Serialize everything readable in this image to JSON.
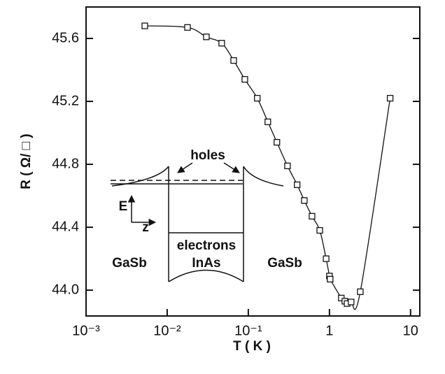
{
  "chart_data": {
    "type": "scatter",
    "xlabel": "T ( K )",
    "ylabel": "R ( Ω/ □ )",
    "x": [
      0.0053,
      0.0178,
      0.0304,
      0.047,
      0.066,
      0.0906,
      0.129,
      0.174,
      0.225,
      0.304,
      0.4,
      0.49,
      0.61,
      0.76,
      0.91,
      1.0,
      1.02,
      1.4,
      1.55,
      1.65,
      1.85,
      2.4,
      5.6
    ],
    "values": [
      45.68,
      45.67,
      45.61,
      45.57,
      45.46,
      45.34,
      45.22,
      45.07,
      44.94,
      44.79,
      44.67,
      44.57,
      44.47,
      44.38,
      44.2,
      44.09,
      44.07,
      43.95,
      43.93,
      43.915,
      43.925,
      43.99,
      45.22
    ],
    "color": "#111111",
    "log_x": true,
    "xlim": [
      0.001,
      13
    ],
    "xticks": [
      {
        "value": 0.001,
        "label": "10⁻³"
      },
      {
        "value": 0.01,
        "label": "10⁻²"
      },
      {
        "value": 0.1,
        "label": "10⁻¹"
      },
      1,
      10
    ],
    "ylim": [
      43.836,
      45.8
    ],
    "yticks": [
      {
        "value": 44,
        "label": "44.0"
      },
      44.4,
      44.8,
      45.2,
      45.6
    ],
    "inset": {
      "holes": "holes",
      "energy": "E",
      "position": "z",
      "electrons": "electrons",
      "well": "InAs",
      "barrier_left": "GaSb",
      "barrier_right": "GaSb"
    }
  }
}
